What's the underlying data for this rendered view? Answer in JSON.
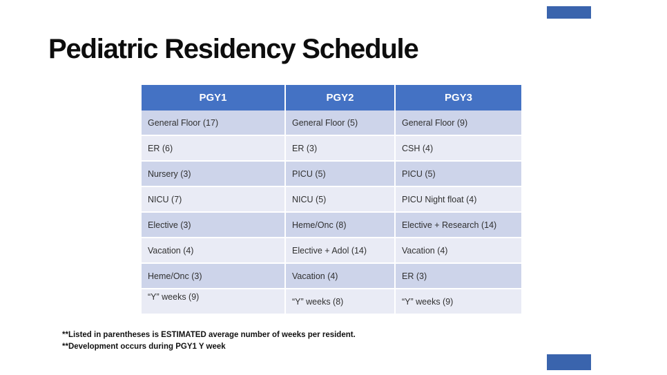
{
  "slide": {
    "title": "Pediatric Residency Schedule",
    "colors": {
      "header_bg": "#4472C4",
      "header_text": "#FFFFFF",
      "row_band_dark": "#CDD4EA",
      "row_band_light": "#E9EBF5",
      "accent_bar": "#3A64AD",
      "title_text": "#0D0D0D"
    },
    "table": {
      "columns": [
        "PGY1",
        "PGY2",
        "PGY3"
      ],
      "rows": [
        {
          "cells": [
            "General Floor (17)",
            "General Floor (5)",
            "General Floor (9)"
          ]
        },
        {
          "cells": [
            "ER (6)",
            "ER (3)",
            "CSH (4)"
          ]
        },
        {
          "cells": [
            "Nursery (3)",
            "PICU (5)",
            "PICU (5)"
          ]
        },
        {
          "cells": [
            "NICU (7)",
            "NICU (5)",
            "PICU Night float (4)"
          ]
        },
        {
          "cells": [
            "Elective (3)",
            "Heme/Onc (8)",
            "Elective + Research (14)"
          ]
        },
        {
          "cells": [
            "Vacation (4)",
            "Elective + Adol (14)",
            "Vacation (4)"
          ]
        },
        {
          "cells": [
            "Heme/Onc (3)",
            "Vacation (4)",
            "ER (3)"
          ]
        },
        {
          "cells": [
            "“Y” weeks (9)",
            "“Y” weeks (8)",
            "“Y” weeks (9)"
          ]
        }
      ]
    },
    "footnotes": [
      "**Listed in parentheses is ESTIMATED average number of weeks per resident.",
      "**Development occurs during PGY1 Y week"
    ]
  }
}
